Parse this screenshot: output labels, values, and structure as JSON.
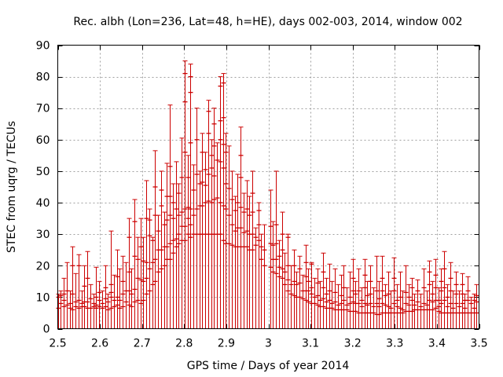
{
  "chart_data": {
    "type": "scatter",
    "style": "vertical error bars with horizontal tick marks at sample values",
    "title": "Rec. albh (Lon=236, Lat=48, h=HE), days 002-003, 2014, window 002",
    "xlabel": "GPS time / Days of year 2014",
    "ylabel": "STEC from uqrg / TECUs",
    "xlim": [
      2.5,
      3.5
    ],
    "ylim": [
      0,
      90
    ],
    "xticks": [
      "2.5",
      "2.6",
      "2.7",
      "2.8",
      "2.9",
      "3",
      "3.1",
      "3.2",
      "3.3",
      "3.4",
      "3.5"
    ],
    "yticks": [
      "0",
      "10",
      "20",
      "30",
      "40",
      "50",
      "60",
      "70",
      "80",
      "90"
    ],
    "grid": true,
    "legend": "none",
    "series_color": "#cc0000",
    "columns": [
      {
        "x": 2.5,
        "max": 11,
        "marks": [
          6.5,
          10
        ]
      },
      {
        "x": 2.507,
        "max": 12,
        "marks": [
          8,
          10.5
        ]
      },
      {
        "x": 2.514,
        "max": 16,
        "marks": [
          7,
          9,
          11
        ]
      },
      {
        "x": 2.521,
        "max": 21,
        "marks": [
          7.5,
          12
        ]
      },
      {
        "x": 2.528,
        "max": 12,
        "marks": [
          6.5,
          8
        ]
      },
      {
        "x": 2.535,
        "max": 26,
        "marks": [
          6,
          11,
          20
        ]
      },
      {
        "x": 2.542,
        "max": 17.5,
        "marks": [
          7,
          8.5
        ]
      },
      {
        "x": 2.549,
        "max": 23.5,
        "marks": [
          6.5,
          9,
          20
        ]
      },
      {
        "x": 2.556,
        "max": 12,
        "marks": [
          7,
          8
        ]
      },
      {
        "x": 2.563,
        "max": 20,
        "marks": [
          7,
          8.5,
          13.5
        ]
      },
      {
        "x": 2.57,
        "max": 24.5,
        "marks": [
          6.5,
          8.5,
          16
        ]
      },
      {
        "x": 2.577,
        "max": 14,
        "marks": [
          6.5,
          9.5
        ]
      },
      {
        "x": 2.584,
        "max": 11,
        "marks": [
          7,
          8
        ]
      },
      {
        "x": 2.591,
        "max": 19.5,
        "marks": [
          6.5,
          7.5,
          10
        ]
      },
      {
        "x": 2.598,
        "max": 15,
        "marks": [
          7,
          9,
          11.5
        ]
      },
      {
        "x": 2.605,
        "max": 12,
        "marks": [
          6.5,
          8
        ]
      },
      {
        "x": 2.612,
        "max": 20,
        "marks": [
          7,
          9.5,
          13
        ]
      },
      {
        "x": 2.619,
        "max": 11,
        "marks": [
          6,
          8.5
        ]
      },
      {
        "x": 2.626,
        "max": 31,
        "marks": [
          6.5,
          10,
          11.5,
          14
        ]
      },
      {
        "x": 2.633,
        "max": 17,
        "marks": [
          7,
          9
        ]
      },
      {
        "x": 2.64,
        "max": 25,
        "marks": [
          7.5,
          10,
          16.5
        ]
      },
      {
        "x": 2.647,
        "max": 19,
        "marks": [
          6.5,
          9
        ]
      },
      {
        "x": 2.654,
        "max": 23,
        "marks": [
          7,
          11,
          15
        ]
      },
      {
        "x": 2.661,
        "max": 21,
        "marks": [
          8.5,
          12
        ]
      },
      {
        "x": 2.668,
        "max": 35,
        "marks": [
          7.5,
          12,
          18,
          29
        ]
      },
      {
        "x": 2.675,
        "max": 19,
        "marks": [
          7,
          11
        ]
      },
      {
        "x": 2.682,
        "max": 41,
        "marks": [
          8.5,
          12.5,
          23,
          34
        ]
      },
      {
        "x": 2.689,
        "max": 29,
        "marks": [
          9,
          16,
          22
        ]
      },
      {
        "x": 2.696,
        "max": 35,
        "marks": [
          8,
          15.5,
          26
        ]
      },
      {
        "x": 2.703,
        "max": 29,
        "marks": [
          9,
          15,
          21.5
        ]
      },
      {
        "x": 2.71,
        "max": 47,
        "marks": [
          11,
          16,
          21,
          35
        ]
      },
      {
        "x": 2.717,
        "max": 38,
        "marks": [
          12,
          19,
          29.5,
          34.5
        ]
      },
      {
        "x": 2.724,
        "max": 29,
        "marks": [
          14,
          21,
          28
        ]
      },
      {
        "x": 2.731,
        "max": 56.5,
        "marks": [
          15,
          22,
          36,
          45
        ]
      },
      {
        "x": 2.738,
        "max": 36,
        "marks": [
          18,
          25,
          31
        ]
      },
      {
        "x": 2.745,
        "max": 50,
        "marks": [
          19,
          25,
          39,
          44
        ]
      },
      {
        "x": 2.752,
        "max": 37,
        "marks": [
          20,
          26,
          33
        ]
      },
      {
        "x": 2.759,
        "max": 52.5,
        "marks": [
          22,
          26,
          34.5,
          42
        ]
      },
      {
        "x": 2.766,
        "max": 71,
        "marks": [
          22,
          27,
          36,
          42,
          51.5
        ]
      },
      {
        "x": 2.773,
        "max": 46,
        "marks": [
          24,
          28,
          35,
          40
        ]
      },
      {
        "x": 2.78,
        "max": 53,
        "marks": [
          26,
          28.5,
          38
        ]
      },
      {
        "x": 2.787,
        "max": 46,
        "marks": [
          27,
          30,
          36,
          43
        ]
      },
      {
        "x": 2.794,
        "max": 60.5,
        "marks": [
          28,
          32.5,
          37,
          48
        ]
      },
      {
        "x": 2.801,
        "max": 85,
        "marks": [
          28,
          32.5,
          38,
          56,
          72,
          81
        ]
      },
      {
        "x": 2.808,
        "max": 55,
        "marks": [
          30,
          35,
          38.5,
          48
        ]
      },
      {
        "x": 2.815,
        "max": 84,
        "marks": [
          29,
          33,
          38,
          59,
          75,
          80
        ]
      },
      {
        "x": 2.822,
        "max": 52,
        "marks": [
          30,
          36,
          44
        ]
      },
      {
        "x": 2.829,
        "max": 70,
        "marks": [
          30,
          38,
          49,
          60
        ]
      },
      {
        "x": 2.836,
        "max": 50,
        "marks": [
          30,
          39,
          46
        ]
      },
      {
        "x": 2.843,
        "max": 62,
        "marks": [
          30,
          39,
          46.5,
          56
        ]
      },
      {
        "x": 2.85,
        "max": 56,
        "marks": [
          30,
          40,
          45.5,
          50.5
        ]
      },
      {
        "x": 2.857,
        "max": 72.5,
        "marks": [
          30,
          40.5,
          49,
          62,
          69
        ]
      },
      {
        "x": 2.864,
        "max": 60,
        "marks": [
          30,
          40,
          51,
          55
        ]
      },
      {
        "x": 2.871,
        "max": 70,
        "marks": [
          30,
          41,
          48.5,
          58,
          65
        ]
      },
      {
        "x": 2.878,
        "max": 59,
        "marks": [
          30,
          41.5,
          53.5
        ]
      },
      {
        "x": 2.885,
        "max": 80,
        "marks": [
          30,
          40,
          53,
          60,
          66,
          77
        ]
      },
      {
        "x": 2.892,
        "max": 81,
        "marks": [
          28,
          39,
          51,
          58.5,
          67,
          78
        ]
      },
      {
        "x": 2.899,
        "max": 62,
        "marks": [
          27,
          38,
          46,
          56
        ]
      },
      {
        "x": 2.906,
        "max": 58,
        "marks": [
          27,
          36,
          44.5
        ]
      },
      {
        "x": 2.913,
        "max": 50,
        "marks": [
          26.5,
          33,
          41
        ]
      },
      {
        "x": 2.92,
        "max": 42,
        "marks": [
          26,
          31,
          37.5
        ]
      },
      {
        "x": 2.927,
        "max": 49,
        "marks": [
          26,
          32,
          40
        ]
      },
      {
        "x": 2.934,
        "max": 64,
        "marks": [
          26,
          32,
          38.5,
          48,
          55
        ]
      },
      {
        "x": 2.941,
        "max": 43,
        "marks": [
          26,
          30.5,
          37
        ]
      },
      {
        "x": 2.948,
        "max": 47,
        "marks": [
          26,
          31,
          38
        ]
      },
      {
        "x": 2.955,
        "max": 42,
        "marks": [
          25,
          30,
          36
        ]
      },
      {
        "x": 2.962,
        "max": 50,
        "marks": [
          25,
          30,
          37,
          43
        ]
      },
      {
        "x": 2.969,
        "max": 32,
        "marks": [
          26.5,
          29
        ]
      },
      {
        "x": 2.976,
        "max": 40,
        "marks": [
          28,
          33,
          37.5
        ]
      },
      {
        "x": 2.983,
        "max": 30,
        "marks": [
          22,
          26
        ]
      },
      {
        "x": 2.99,
        "max": 33,
        "marks": [
          20,
          25
        ]
      },
      {
        "x": 3.004,
        "max": 44,
        "marks": [
          19.5,
          27,
          32.5
        ]
      },
      {
        "x": 3.011,
        "max": 34,
        "marks": [
          18,
          22,
          26.5
        ]
      },
      {
        "x": 3.018,
        "max": 50,
        "marks": [
          17.5,
          22,
          27,
          33
        ]
      },
      {
        "x": 3.025,
        "max": 28,
        "marks": [
          16.5,
          19.5,
          23
        ]
      },
      {
        "x": 3.032,
        "max": 37,
        "marks": [
          16,
          19,
          25,
          30
        ]
      },
      {
        "x": 3.039,
        "max": 24,
        "marks": [
          14,
          18
        ]
      },
      {
        "x": 3.046,
        "max": 30,
        "marks": [
          12,
          15.5,
          20,
          29
        ]
      },
      {
        "x": 3.053,
        "max": 20,
        "marks": [
          11,
          14
        ]
      },
      {
        "x": 3.06,
        "max": 25,
        "marks": [
          10.5,
          15,
          20
        ]
      },
      {
        "x": 3.067,
        "max": 18,
        "marks": [
          10,
          14
        ]
      },
      {
        "x": 3.074,
        "max": 23,
        "marks": [
          10,
          14.5,
          19
        ]
      },
      {
        "x": 3.081,
        "max": 17,
        "marks": [
          9.5,
          12
        ]
      },
      {
        "x": 3.088,
        "max": 26.5,
        "marks": [
          9,
          12,
          16.5,
          21
        ]
      },
      {
        "x": 3.095,
        "max": 19,
        "marks": [
          8.5,
          12,
          15
        ]
      },
      {
        "x": 3.102,
        "max": 21,
        "marks": [
          8,
          11,
          13,
          20.5
        ]
      },
      {
        "x": 3.109,
        "max": 16,
        "marks": [
          8,
          10
        ]
      },
      {
        "x": 3.116,
        "max": 19,
        "marks": [
          7.5,
          10.5,
          14.5
        ]
      },
      {
        "x": 3.123,
        "max": 15,
        "marks": [
          7,
          9
        ]
      },
      {
        "x": 3.13,
        "max": 24,
        "marks": [
          7,
          9.5,
          13,
          18
        ]
      },
      {
        "x": 3.137,
        "max": 16,
        "marks": [
          6.5,
          8.5,
          11
        ]
      },
      {
        "x": 3.144,
        "max": 20.5,
        "marks": [
          6.5,
          9,
          12
        ]
      },
      {
        "x": 3.151,
        "max": 15,
        "marks": [
          6.5,
          8
        ]
      },
      {
        "x": 3.158,
        "max": 19,
        "marks": [
          6,
          8.5,
          11.5
        ]
      },
      {
        "x": 3.165,
        "max": 14,
        "marks": [
          6,
          7.5
        ]
      },
      {
        "x": 3.172,
        "max": 17,
        "marks": [
          6,
          8,
          10.5
        ]
      },
      {
        "x": 3.179,
        "max": 20,
        "marks": [
          6,
          9,
          13
        ]
      },
      {
        "x": 3.186,
        "max": 13,
        "marks": [
          6,
          7.5
        ]
      },
      {
        "x": 3.193,
        "max": 18,
        "marks": [
          5.5,
          8,
          10
        ]
      },
      {
        "x": 3.2,
        "max": 22,
        "marks": [
          5.5,
          8.5,
          12,
          16
        ]
      },
      {
        "x": 3.207,
        "max": 15,
        "marks": [
          5.5,
          8,
          11
        ]
      },
      {
        "x": 3.214,
        "max": 19,
        "marks": [
          5,
          8,
          12
        ]
      },
      {
        "x": 3.221,
        "max": 13,
        "marks": [
          5,
          7,
          9
        ]
      },
      {
        "x": 3.228,
        "max": 22,
        "marks": [
          5,
          8,
          13,
          17
        ]
      },
      {
        "x": 3.235,
        "max": 15,
        "marks": [
          5,
          7.5,
          10.5
        ]
      },
      {
        "x": 3.242,
        "max": 20,
        "marks": [
          5,
          8,
          11,
          15
        ]
      },
      {
        "x": 3.249,
        "max": 13,
        "marks": [
          5,
          7
        ]
      },
      {
        "x": 3.256,
        "max": 23,
        "marks": [
          4.5,
          8,
          12
        ]
      },
      {
        "x": 3.263,
        "max": 15,
        "marks": [
          4.5,
          7,
          9.5
        ]
      },
      {
        "x": 3.27,
        "max": 23,
        "marks": [
          5,
          8,
          12,
          16
        ]
      },
      {
        "x": 3.277,
        "max": 14,
        "marks": [
          5,
          7.5,
          10.5
        ]
      },
      {
        "x": 3.284,
        "max": 18,
        "marks": [
          5,
          7,
          11
        ]
      },
      {
        "x": 3.291,
        "max": 12,
        "marks": [
          5,
          6.5
        ]
      },
      {
        "x": 3.298,
        "max": 22.5,
        "marks": [
          5,
          8,
          12,
          16
        ]
      },
      {
        "x": 3.305,
        "max": 14,
        "marks": [
          5,
          7,
          9
        ]
      },
      {
        "x": 3.312,
        "max": 18,
        "marks": [
          5,
          6.5,
          10
        ]
      },
      {
        "x": 3.319,
        "max": 12,
        "marks": [
          5,
          6
        ]
      },
      {
        "x": 3.326,
        "max": 20,
        "marks": [
          5.5,
          8,
          11.5
        ]
      },
      {
        "x": 3.333,
        "max": 14,
        "marks": [
          5.5,
          7.5,
          10
        ]
      },
      {
        "x": 3.34,
        "max": 16,
        "marks": [
          5.5,
          9,
          13
        ]
      },
      {
        "x": 3.347,
        "max": 11,
        "marks": [
          6,
          7.5
        ]
      },
      {
        "x": 3.354,
        "max": 15.5,
        "marks": [
          6,
          8.5,
          12
        ]
      },
      {
        "x": 3.361,
        "max": 11,
        "marks": [
          6,
          7
        ]
      },
      {
        "x": 3.368,
        "max": 19,
        "marks": [
          6,
          8,
          13
        ]
      },
      {
        "x": 3.375,
        "max": 12,
        "marks": [
          6,
          7.5
        ]
      },
      {
        "x": 3.382,
        "max": 21.5,
        "marks": [
          6,
          9,
          14,
          18
        ]
      },
      {
        "x": 3.389,
        "max": 15,
        "marks": [
          6,
          8.5,
          11
        ]
      },
      {
        "x": 3.396,
        "max": 22,
        "marks": [
          6.5,
          9,
          13,
          17
        ]
      },
      {
        "x": 3.403,
        "max": 13,
        "marks": [
          5.5,
          7,
          9
        ]
      },
      {
        "x": 3.41,
        "max": 19,
        "marks": [
          5,
          8,
          12,
          15
        ]
      },
      {
        "x": 3.417,
        "max": 24.5,
        "marks": [
          5,
          9,
          13,
          19
        ]
      },
      {
        "x": 3.424,
        "max": 14,
        "marks": [
          5,
          7,
          10
        ]
      },
      {
        "x": 3.431,
        "max": 21,
        "marks": [
          5,
          8,
          12,
          16
        ]
      },
      {
        "x": 3.438,
        "max": 12,
        "marks": [
          5,
          6.5
        ]
      },
      {
        "x": 3.445,
        "max": 18,
        "marks": [
          5,
          8,
          11,
          14
        ]
      },
      {
        "x": 3.452,
        "max": 12,
        "marks": [
          5,
          7
        ]
      },
      {
        "x": 3.459,
        "max": 17.5,
        "marks": [
          5,
          8,
          11,
          14
        ]
      },
      {
        "x": 3.466,
        "max": 11,
        "marks": [
          5,
          6.5,
          9
        ]
      },
      {
        "x": 3.473,
        "max": 16.5,
        "marks": [
          5,
          9,
          12
        ]
      },
      {
        "x": 3.48,
        "max": 10,
        "marks": [
          5,
          8
        ]
      },
      {
        "x": 3.487,
        "max": 11,
        "marks": [
          5,
          6.5,
          9
        ]
      },
      {
        "x": 3.494,
        "max": 14,
        "marks": [
          5,
          8.5,
          10.5
        ]
      }
    ]
  }
}
